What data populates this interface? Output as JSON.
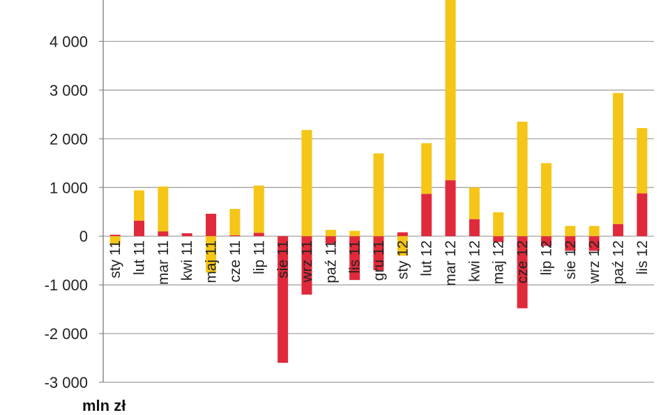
{
  "chart_data": {
    "type": "bar",
    "stacked": true,
    "categories": [
      "sty 11",
      "lut 11",
      "mar 11",
      "kwi 11",
      "maj 11",
      "cze 11",
      "lip 11",
      "sie 11",
      "wrz 11",
      "paź 11",
      "lis 11",
      "gru 11",
      "sty 12",
      "lut 12",
      "mar 12",
      "kwi 12",
      "maj 12",
      "cze 12",
      "lip 12",
      "sie 12",
      "wrz 12",
      "paź 12",
      "lis 12"
    ],
    "series": [
      {
        "color": "#e02a3b",
        "values": [
          30,
          320,
          100,
          60,
          460,
          20,
          70,
          -2600,
          -1200,
          -150,
          -900,
          -700,
          80,
          870,
          1150,
          350,
          -120,
          -1480,
          -200,
          -300,
          -300,
          250,
          880
        ]
      },
      {
        "color": "#f5c518",
        "values": [
          -180,
          620,
          920,
          0,
          -750,
          540,
          970,
          0,
          2180,
          130,
          110,
          1700,
          -400,
          1040,
          3700,
          650,
          490,
          2350,
          1500,
          210,
          210,
          2690,
          1340
        ]
      }
    ],
    "yticks": [
      -3000,
      -2000,
      -1000,
      0,
      1000,
      2000,
      3000,
      4000
    ],
    "ytick_labels": [
      "-3 000",
      "-2 000",
      "-1 000",
      "0",
      "1 000",
      "2 000",
      "3 000",
      "4 000"
    ],
    "ylim": [
      -3000,
      4850
    ],
    "ylabel": "mln zł",
    "grid": true
  }
}
